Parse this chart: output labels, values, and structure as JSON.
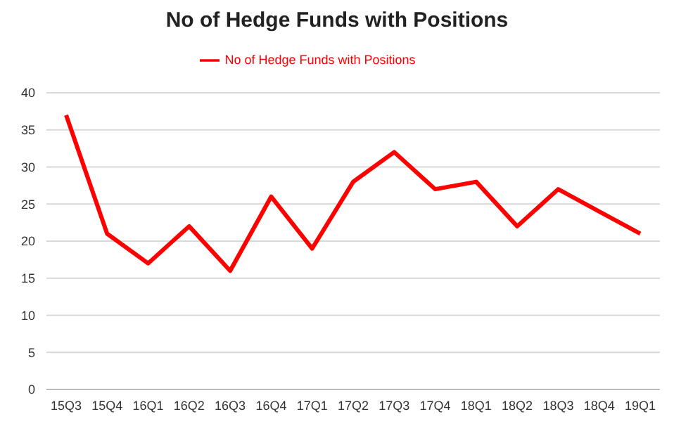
{
  "chart_data": {
    "type": "line",
    "title": "No of Hedge Funds with Positions",
    "categories": [
      "15Q3",
      "15Q4",
      "16Q1",
      "16Q2",
      "16Q3",
      "16Q4",
      "17Q1",
      "17Q2",
      "17Q3",
      "17Q4",
      "18Q1",
      "18Q2",
      "18Q3",
      "18Q4",
      "19Q1"
    ],
    "series": [
      {
        "name": "No of Hedge Funds with Positions",
        "color": "#ff0000",
        "values": [
          37,
          21,
          17,
          22,
          16,
          26,
          19,
          28,
          32,
          27,
          28,
          22,
          27,
          24,
          21
        ]
      }
    ],
    "ylim": [
      0,
      40
    ],
    "yticks": [
      0,
      5,
      10,
      15,
      20,
      25,
      30,
      35,
      40
    ],
    "grid": "y",
    "legend": "top",
    "marker": "none",
    "line_style": "solid"
  }
}
